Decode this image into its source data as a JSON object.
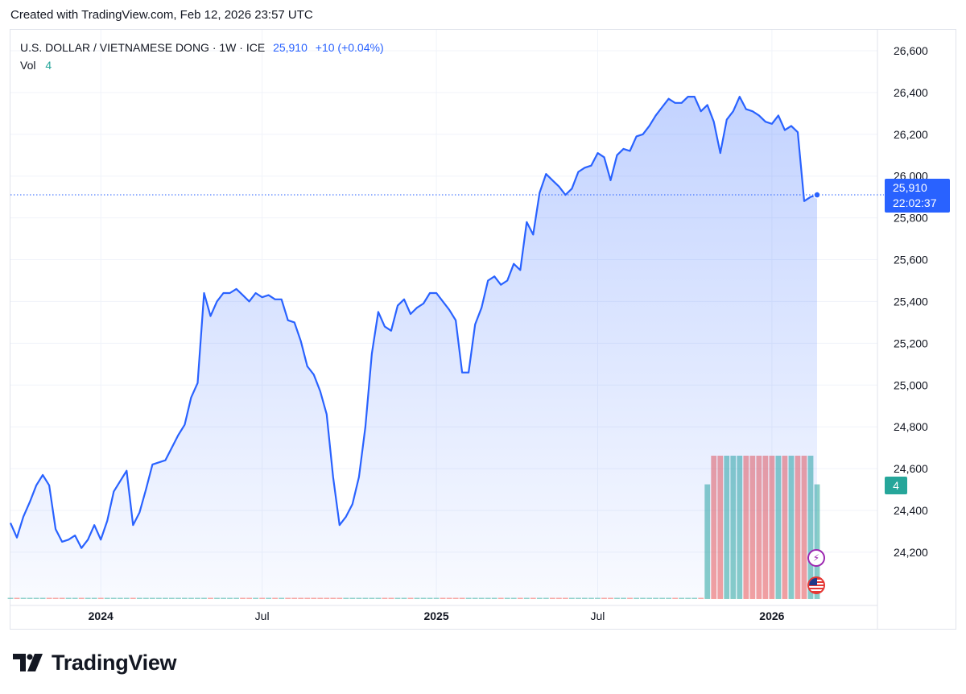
{
  "header": {
    "created_text": "Created with TradingView.com, Feb 12, 2026 23:57 UTC"
  },
  "legend": {
    "symbol_text": "U.S. DOLLAR / VIETNAMESE DONG · 1W · ICE",
    "price": "25,910",
    "change": "+10 (+0.04%)",
    "vol_label": "Vol",
    "vol_value": "4"
  },
  "price_label": {
    "price": "25,910",
    "countdown": "22:02:37"
  },
  "vol_label_box": "4",
  "footer": {
    "brand": "TradingView"
  },
  "colors": {
    "line": "#2962ff",
    "vol_up": "#26a69a",
    "vol_down": "#ef5350",
    "grid": "#f0f3fa"
  },
  "icons": [
    "lightning-icon",
    "us-flag-icon"
  ],
  "chart_data": {
    "type": "area",
    "title": "U.S. DOLLAR / VIETNAMESE DONG · 1W · ICE",
    "ylim": [
      23980,
      26700
    ],
    "yticks": [
      24200,
      24400,
      24600,
      24800,
      25000,
      25200,
      25400,
      25600,
      25800,
      26000,
      26200,
      26400,
      26600
    ],
    "x_labels": [
      "2024",
      "Jul",
      "2025",
      "Jul",
      "2026"
    ],
    "x_label_weeks": [
      14,
      39,
      66,
      91,
      118
    ],
    "last_price": 25910,
    "series": [
      {
        "values": [
          24340,
          24270,
          24370,
          24440,
          24520,
          24570,
          24520,
          24310,
          24250,
          24260,
          24280,
          24220,
          24260,
          24330,
          24260,
          24350,
          24490,
          24540,
          24590,
          24330,
          24390,
          24500,
          24620,
          24630,
          24640,
          24700,
          24760,
          24810,
          24940,
          25010,
          25440,
          25330,
          25400,
          25440,
          25440,
          25460,
          25430,
          25400,
          25440,
          25420,
          25430,
          25410,
          25410,
          25310,
          25300,
          25210,
          25090,
          25050,
          24970,
          24860,
          24560,
          24330,
          24370,
          24430,
          24560,
          24800,
          25150,
          25350,
          25280,
          25260,
          25380,
          25410,
          25340,
          25370,
          25390,
          25440,
          25440,
          25400,
          25360,
          25310,
          25060,
          25060,
          25290,
          25370,
          25500,
          25520,
          25480,
          25500,
          25580,
          25550,
          25780,
          25720,
          25920,
          26010,
          25980,
          25950,
          25910,
          25940,
          26020,
          26040,
          26050,
          26110,
          26090,
          25980,
          26100,
          26130,
          26120,
          26190,
          26200,
          26240,
          26290,
          26330,
          26370,
          26350,
          26350,
          26380,
          26380,
          26310,
          26340,
          26260,
          26110,
          26270,
          26310,
          26380,
          26320,
          26310,
          26290,
          26260,
          26250,
          26290,
          26220,
          26240,
          26210,
          25880,
          25900,
          25910
        ]
      },
      {
        "name": "Vol",
        "values": [
          0,
          0,
          0,
          0,
          0,
          0,
          0,
          0,
          0,
          0,
          0,
          0,
          0,
          0,
          0,
          0,
          0,
          0,
          0,
          0,
          0,
          0,
          0,
          0,
          0,
          0,
          0,
          0,
          0,
          0,
          0,
          0,
          0,
          0,
          0,
          0,
          0,
          0,
          0,
          0,
          0,
          0,
          0,
          0,
          0,
          0,
          0,
          0,
          0,
          0,
          0,
          0,
          0,
          0,
          0,
          0,
          0,
          0,
          0,
          0,
          0,
          0,
          0,
          0,
          0,
          0,
          0,
          0,
          0,
          0,
          0,
          0,
          0,
          0,
          0,
          0,
          0,
          0,
          0,
          0,
          0,
          0,
          0,
          0,
          0,
          0,
          0,
          0,
          0,
          0,
          0,
          0,
          0,
          0,
          0,
          0,
          0,
          0,
          0,
          0,
          0,
          0,
          0,
          0,
          0,
          0,
          0,
          0,
          4,
          5,
          5,
          5,
          5,
          5,
          5,
          5,
          5,
          5,
          5,
          5,
          5,
          5,
          5,
          5,
          5,
          4
        ]
      }
    ]
  }
}
